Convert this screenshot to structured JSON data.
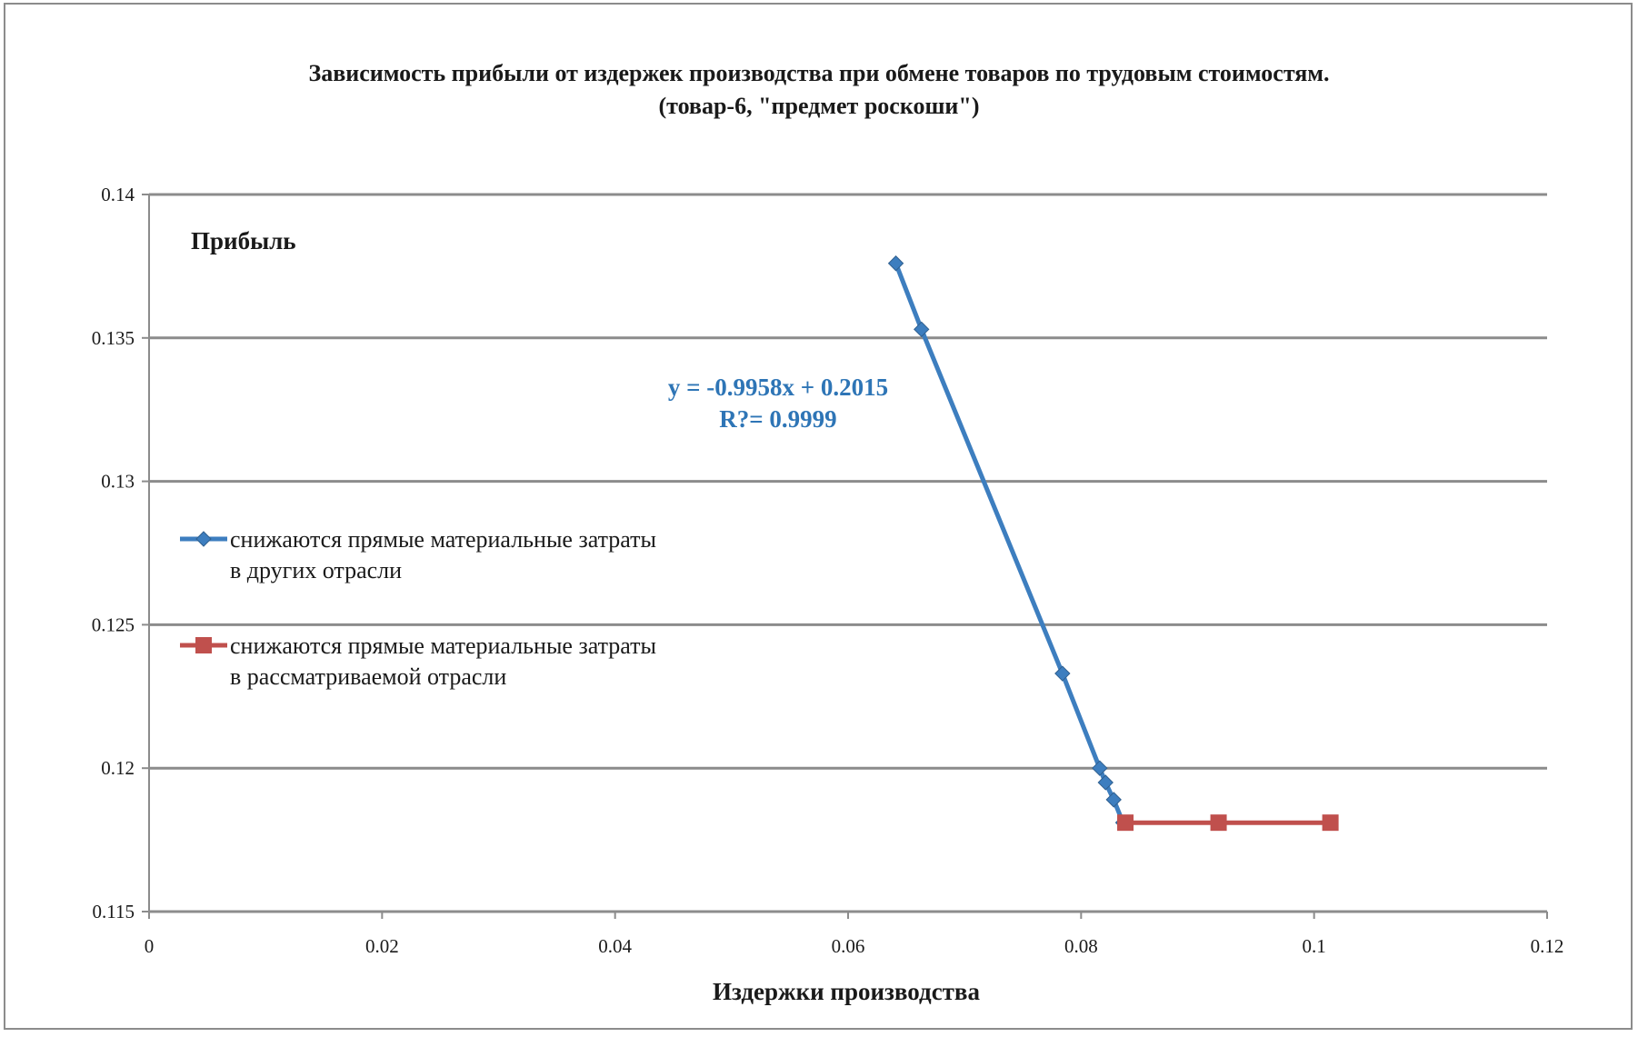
{
  "chart_data": {
    "type": "line",
    "title": "Зависимость прибыли от издержек производства при обмене товаров по трудовым стоимостям.",
    "subtitle": "(товар-6, \"предмет роскоши\")",
    "xlabel": "Издержки производства",
    "ylabel": "Прибыль",
    "xlim": [
      0,
      0.12
    ],
    "ylim": [
      0.115,
      0.14
    ],
    "x_ticks": [
      "0",
      "0.02",
      "0.04",
      "0.06",
      "0.08",
      "0.1",
      "0.12"
    ],
    "y_ticks": [
      "0.115",
      "0.12",
      "0.125",
      "0.13",
      "0.135",
      "0.14"
    ],
    "grid": "horizontal",
    "legend_position": "left",
    "series": [
      {
        "name": "снижаются прямые материальные затраты в других отрасли",
        "legend_lines": [
          "снижаются прямые материальные затраты",
          "в других отрасли"
        ],
        "color": "#3d7ebf",
        "marker": "diamond",
        "points": [
          {
            "x": 0.0641,
            "y": 0.1376
          },
          {
            "x": 0.0663,
            "y": 0.1353
          },
          {
            "x": 0.0784,
            "y": 0.1233
          },
          {
            "x": 0.0816,
            "y": 0.12
          },
          {
            "x": 0.0821,
            "y": 0.1195
          },
          {
            "x": 0.0828,
            "y": 0.1189
          },
          {
            "x": 0.0836,
            "y": 0.1181
          }
        ]
      },
      {
        "name": "снижаются прямые материальные затраты в рассматриваемой отрасли",
        "legend_lines": [
          "снижаются прямые материальные затраты",
          "в рассматриваемой отрасли"
        ],
        "color": "#c0504d",
        "marker": "square",
        "points": [
          {
            "x": 0.0838,
            "y": 0.1181
          },
          {
            "x": 0.0918,
            "y": 0.1181
          },
          {
            "x": 0.1014,
            "y": 0.1181
          }
        ]
      }
    ],
    "trendline": {
      "equation": "y = -0.9958x + 0.2015",
      "r_squared": "R?= 0.9999",
      "color": "#2e75b6"
    }
  }
}
